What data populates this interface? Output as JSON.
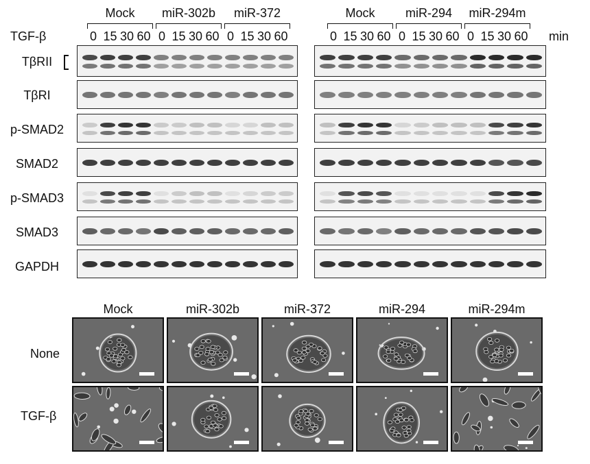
{
  "blot_panel": {
    "left_groups": [
      "Mock",
      "miR-302b",
      "miR-372"
    ],
    "right_groups": [
      "Mock",
      "miR-294",
      "miR-294m"
    ],
    "treatment_label": "TGF-β",
    "timepoints": [
      "0",
      "15",
      "30",
      "60"
    ],
    "unit_label": "min",
    "rows": [
      {
        "label": "TβRII",
        "left": [
          0.75,
          0.8,
          0.8,
          0.8,
          0.5,
          0.5,
          0.5,
          0.5,
          0.5,
          0.5,
          0.5,
          0.5
        ],
        "right": [
          0.8,
          0.8,
          0.8,
          0.8,
          0.6,
          0.6,
          0.6,
          0.6,
          0.9,
          0.9,
          0.9,
          0.9
        ],
        "double": true
      },
      {
        "label": "TβRI",
        "left": [
          0.55,
          0.55,
          0.55,
          0.55,
          0.5,
          0.55,
          0.55,
          0.55,
          0.5,
          0.55,
          0.55,
          0.55
        ],
        "right": [
          0.5,
          0.5,
          0.5,
          0.5,
          0.5,
          0.5,
          0.5,
          0.5,
          0.55,
          0.55,
          0.55,
          0.55
        ],
        "double": false
      },
      {
        "label": "p-SMAD2",
        "left": [
          0.15,
          0.8,
          0.85,
          0.85,
          0.15,
          0.15,
          0.2,
          0.2,
          0.1,
          0.1,
          0.2,
          0.2
        ],
        "right": [
          0.2,
          0.8,
          0.85,
          0.85,
          0.1,
          0.15,
          0.2,
          0.2,
          0.2,
          0.75,
          0.8,
          0.85
        ],
        "double": true
      },
      {
        "label": "SMAD2",
        "left": [
          0.8,
          0.8,
          0.8,
          0.8,
          0.8,
          0.8,
          0.8,
          0.8,
          0.8,
          0.8,
          0.8,
          0.8
        ],
        "right": [
          0.8,
          0.8,
          0.8,
          0.8,
          0.8,
          0.8,
          0.8,
          0.8,
          0.8,
          0.7,
          0.7,
          0.75
        ],
        "double": false
      },
      {
        "label": "p-SMAD3",
        "left": [
          0.05,
          0.75,
          0.8,
          0.8,
          0.05,
          0.15,
          0.2,
          0.2,
          0.05,
          0.1,
          0.15,
          0.15
        ],
        "right": [
          0.05,
          0.7,
          0.75,
          0.7,
          0.05,
          0.05,
          0.05,
          0.05,
          0.05,
          0.75,
          0.85,
          0.9
        ],
        "double": true
      },
      {
        "label": "SMAD3",
        "left": [
          0.65,
          0.6,
          0.6,
          0.55,
          0.75,
          0.65,
          0.65,
          0.65,
          0.6,
          0.6,
          0.6,
          0.65
        ],
        "right": [
          0.6,
          0.55,
          0.6,
          0.5,
          0.65,
          0.6,
          0.6,
          0.6,
          0.7,
          0.7,
          0.75,
          0.75
        ],
        "double": false
      },
      {
        "label": "GAPDH",
        "left": [
          0.85,
          0.85,
          0.85,
          0.85,
          0.85,
          0.85,
          0.85,
          0.85,
          0.85,
          0.85,
          0.85,
          0.85
        ],
        "right": [
          0.85,
          0.85,
          0.85,
          0.85,
          0.85,
          0.85,
          0.85,
          0.85,
          0.85,
          0.85,
          0.85,
          0.85
        ],
        "double": false
      }
    ]
  },
  "micrographs": {
    "columns": [
      "Mock",
      "miR-302b",
      "miR-372",
      "miR-294",
      "miR-294m"
    ],
    "rows": [
      "None",
      "TGF-β"
    ],
    "morphology": [
      [
        "colony",
        "colony",
        "colony",
        "colony",
        "colony"
      ],
      [
        "scattered",
        "colony",
        "colony",
        "colony",
        "scattered"
      ]
    ]
  }
}
